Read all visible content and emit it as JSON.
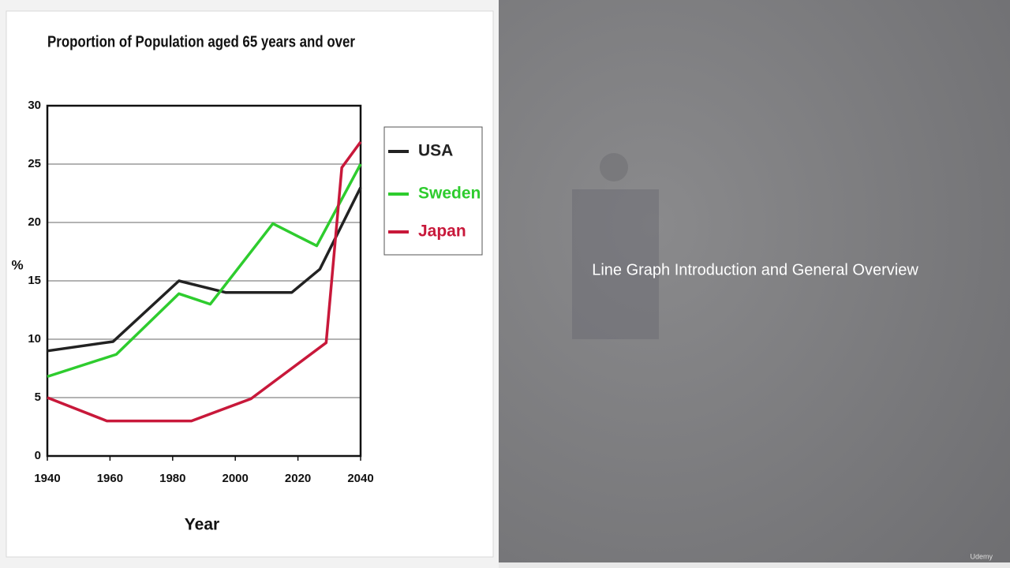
{
  "chart_data": {
    "type": "line",
    "title": "Proportion of Population aged 65 years and over",
    "x_label": "Year",
    "y_label": "%",
    "xlim": [
      1940,
      2040
    ],
    "xticks": [
      1940,
      1960,
      1980,
      2000,
      2020,
      2040
    ],
    "ylim": [
      0,
      30
    ],
    "yticks": [
      0,
      5,
      10,
      15,
      20,
      25,
      30
    ],
    "grid": true,
    "legend": "right",
    "series": [
      {
        "name": "USA",
        "color": "#222222",
        "x": [
          1940,
          1961,
          1982,
          1997,
          2018,
          2027,
          2040
        ],
        "values": [
          9,
          9.8,
          15,
          14,
          14,
          16,
          23
        ]
      },
      {
        "name": "Sweden",
        "color": "#2ecc2e",
        "x": [
          1940,
          1962,
          1982,
          1992,
          2012,
          2026,
          2040
        ],
        "values": [
          6.8,
          8.7,
          13.9,
          13,
          19.9,
          18,
          25
        ]
      },
      {
        "name": "Japan",
        "color": "#c8183a",
        "x": [
          1940,
          1959,
          1986,
          2005,
          2029,
          2034,
          2040
        ],
        "values": [
          5,
          3,
          3,
          4.9,
          9.7,
          24.7,
          26.9
        ]
      }
    ]
  },
  "video": {
    "caption": "Line Graph Introduction and General Overview",
    "watermark": "Udemy"
  }
}
